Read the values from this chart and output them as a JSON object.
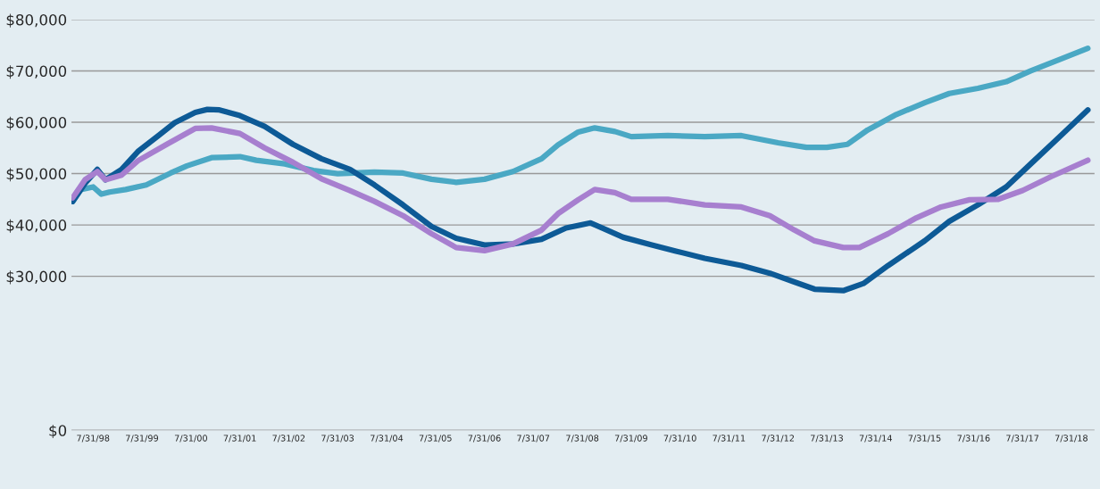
{
  "chart_data": {
    "type": "line",
    "xlim": [
      "1998-02-20",
      "2019-01-20"
    ],
    "ylim": [
      0,
      80000
    ],
    "xticks": [
      {
        "value": "1998-07-31",
        "label": "7/31/98"
      },
      {
        "value": "1999-07-31",
        "label": "7/31/99"
      },
      {
        "value": "2000-07-31",
        "label": "7/31/00"
      },
      {
        "value": "2001-07-31",
        "label": "7/31/01"
      },
      {
        "value": "2002-07-31",
        "label": "7/31/02"
      },
      {
        "value": "2003-07-31",
        "label": "7/31/03"
      },
      {
        "value": "2004-07-31",
        "label": "7/31/04"
      },
      {
        "value": "2005-07-31",
        "label": "7/31/05"
      },
      {
        "value": "2006-07-31",
        "label": "7/31/06"
      },
      {
        "value": "2007-07-31",
        "label": "7/31/07"
      },
      {
        "value": "2008-07-31",
        "label": "7/31/08"
      },
      {
        "value": "2009-07-31",
        "label": "7/31/09"
      },
      {
        "value": "2010-07-31",
        "label": "7/31/10"
      },
      {
        "value": "2011-07-31",
        "label": "7/31/11"
      },
      {
        "value": "2012-07-31",
        "label": "7/31/12"
      },
      {
        "value": "2013-07-31",
        "label": "7/31/13"
      },
      {
        "value": "2014-07-31",
        "label": "7/31/14"
      },
      {
        "value": "2015-07-31",
        "label": "7/31/15"
      },
      {
        "value": "2016-07-31",
        "label": "7/31/16"
      },
      {
        "value": "2017-07-31",
        "label": "7/31/17"
      },
      {
        "value": "2018-07-31",
        "label": "7/31/18"
      }
    ],
    "yticks": [
      {
        "value": 0,
        "label": "$0"
      },
      {
        "value": 30000,
        "label": "$30,000"
      },
      {
        "value": 40000,
        "label": "$40,000"
      },
      {
        "value": 50000,
        "label": "$50,000"
      },
      {
        "value": 60000,
        "label": "$60,000"
      },
      {
        "value": 70000,
        "label": "$70,000"
      },
      {
        "value": 80000,
        "label": "$80,000"
      }
    ],
    "grid": "y",
    "marker": "none",
    "line_style": "solid",
    "series": [
      {
        "color": "#4aa8c4",
        "x": [
          "1998-03",
          "1998-05",
          "1998-08",
          "1998-10",
          "1998-12",
          "1999-04",
          "1999-09",
          "2000-03",
          "2000-07",
          "2001-01",
          "2001-08",
          "2001-12",
          "2002-07",
          "2003-02",
          "2003-08",
          "2004-05",
          "2004-12",
          "2005-07",
          "2006-01",
          "2006-08",
          "2007-03",
          "2007-10",
          "2008-02",
          "2008-07",
          "2008-11",
          "2009-04",
          "2009-08",
          "2010-05",
          "2011-02",
          "2011-11",
          "2012-08",
          "2013-03",
          "2013-08",
          "2014-01",
          "2014-06",
          "2015-01",
          "2015-08",
          "2016-02",
          "2016-09",
          "2017-04",
          "2017-10",
          "2018-05",
          "2018-12"
        ],
        "values": [
          44600,
          46900,
          47400,
          46000,
          46400,
          46900,
          47800,
          50100,
          51500,
          53100,
          53300,
          52600,
          51900,
          50600,
          50000,
          50300,
          50100,
          48900,
          48300,
          48900,
          50400,
          52900,
          55600,
          58100,
          58900,
          58200,
          57200,
          57400,
          57200,
          57400,
          56000,
          55100,
          55100,
          55700,
          58500,
          61500,
          63800,
          65600,
          66600,
          67900,
          70000,
          72200,
          74400
        ]
      },
      {
        "color": "#0d5a96",
        "x": [
          "1998-03",
          "1998-06",
          "1998-09",
          "1998-11",
          "1999-03",
          "1999-07",
          "1999-12",
          "2000-04",
          "2000-09",
          "2000-12",
          "2001-03",
          "2001-08",
          "2002-02",
          "2002-09",
          "2003-04",
          "2003-11",
          "2004-05",
          "2004-12",
          "2005-07",
          "2006-01",
          "2006-08",
          "2007-03",
          "2007-10",
          "2008-04",
          "2008-10",
          "2009-02",
          "2009-06",
          "2010-01",
          "2010-07",
          "2011-02",
          "2011-11",
          "2012-06",
          "2012-12",
          "2013-05",
          "2013-12",
          "2014-05",
          "2014-11",
          "2015-08",
          "2016-02",
          "2016-09",
          "2017-04",
          "2017-10",
          "2018-05",
          "2018-12"
        ],
        "values": [
          44600,
          48100,
          50800,
          48800,
          50800,
          54300,
          57400,
          59900,
          61900,
          62500,
          62400,
          61300,
          59200,
          55700,
          52900,
          50800,
          47800,
          43900,
          39700,
          37400,
          36100,
          36300,
          37200,
          39400,
          40400,
          39000,
          37600,
          36100,
          34900,
          33500,
          32100,
          30600,
          28900,
          27500,
          27200,
          28600,
          32100,
          36900,
          40700,
          43900,
          47400,
          51900,
          57100,
          62400
        ]
      },
      {
        "color": "#a77fcf",
        "x": [
          "1998-03",
          "1998-06",
          "1998-09",
          "1998-11",
          "1999-03",
          "1999-07",
          "2000-02",
          "2000-09",
          "2001-01",
          "2001-08",
          "2002-02",
          "2002-09",
          "2003-04",
          "2003-11",
          "2004-05",
          "2004-12",
          "2005-07",
          "2006-01",
          "2006-08",
          "2007-03",
          "2007-10",
          "2008-02",
          "2008-07",
          "2008-11",
          "2009-04",
          "2009-08",
          "2010-05",
          "2011-02",
          "2011-11",
          "2012-06",
          "2012-12",
          "2013-05",
          "2013-12",
          "2014-04",
          "2014-11",
          "2015-06",
          "2015-12",
          "2016-07",
          "2017-02",
          "2017-08",
          "2018-03",
          "2018-12"
        ],
        "values": [
          45300,
          48800,
          50400,
          48800,
          49700,
          52500,
          55700,
          58800,
          58900,
          57800,
          55000,
          52200,
          49000,
          46700,
          44600,
          41800,
          38300,
          35600,
          35000,
          36300,
          39000,
          42200,
          44900,
          46900,
          46300,
          45000,
          45000,
          43900,
          43500,
          41800,
          39000,
          36900,
          35600,
          35600,
          38300,
          41400,
          43500,
          44900,
          45000,
          46700,
          49400,
          52600
        ]
      }
    ]
  }
}
